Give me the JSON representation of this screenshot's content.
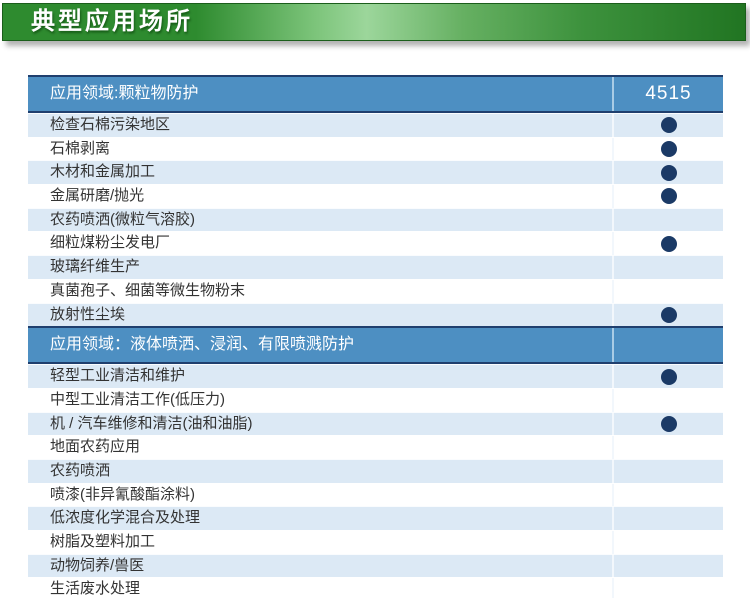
{
  "banner": {
    "title": "典型应用场所"
  },
  "table": {
    "sections": [
      {
        "header": "应用领域:颗粒物防护",
        "header_value": "4515",
        "rows": [
          {
            "label": "检查石棉污染地区",
            "dot": true
          },
          {
            "label": "石棉剥离",
            "dot": true
          },
          {
            "label": "木材和金属加工",
            "dot": true
          },
          {
            "label": "金属研磨/抛光",
            "dot": true
          },
          {
            "label": "农药喷洒(微粒气溶胶)",
            "dot": false
          },
          {
            "label": "细粒煤粉尘发电厂",
            "dot": true
          },
          {
            "label": "玻璃纤维生产",
            "dot": false
          },
          {
            "label": "真菌孢子、细菌等微生物粉末",
            "dot": false
          },
          {
            "label": "放射性尘埃",
            "dot": true
          }
        ]
      },
      {
        "header": "应用领域：液体喷洒、浸润、有限喷溅防护",
        "header_value": "",
        "rows": [
          {
            "label": "轻型工业清洁和维护",
            "dot": true
          },
          {
            "label": "中型工业清洁工作(低压力)",
            "dot": false
          },
          {
            "label": "机 / 汽车维修和清洁(油和油脂)",
            "dot": true
          },
          {
            "label": "地面农药应用",
            "dot": false
          },
          {
            "label": "农药喷洒",
            "dot": false
          },
          {
            "label": "喷漆(非异氰酸酯涂料)",
            "dot": false
          },
          {
            "label": "低浓度化学混合及处理",
            "dot": false
          },
          {
            "label": "树脂及塑料加工",
            "dot": false
          },
          {
            "label": "动物饲养/兽医",
            "dot": false
          },
          {
            "label": "生活废水处理",
            "dot": false
          }
        ]
      }
    ]
  },
  "colors": {
    "banner_green_left": "#2e8b2f",
    "banner_green_light": "#9cd69b",
    "banner_green_right": "#217522",
    "section_header_blue": "#4d8fc2",
    "section_border_navy": "#1f3f6e",
    "row_alt_blue": "#dce9f5",
    "row_white": "#ffffff",
    "dot_navy": "#1b3a66",
    "text_dark": "#333333"
  }
}
